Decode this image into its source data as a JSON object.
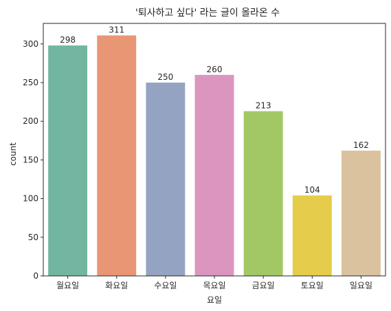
{
  "chart_data": {
    "type": "bar",
    "title": "'퇴사하고 싶다' 라는 글이 올라온 수",
    "xlabel": "요일",
    "ylabel": "count",
    "categories": [
      "월요일",
      "화요일",
      "수요일",
      "목요일",
      "금요일",
      "토요일",
      "일요일"
    ],
    "values": [
      298,
      311,
      250,
      260,
      213,
      104,
      162
    ],
    "data_labels": [
      "298",
      "311",
      "250",
      "260",
      "213",
      "104",
      "162"
    ],
    "colors": [
      "#72b6a1",
      "#e99675",
      "#95a3c3",
      "#db96c0",
      "#a2c865",
      "#e5cc4a",
      "#dbc29e"
    ],
    "ylim": [
      0,
      326.55
    ],
    "yticks": [
      0,
      50,
      100,
      150,
      200,
      250,
      300
    ],
    "ytick_labels": [
      "0",
      "50",
      "100",
      "150",
      "200",
      "250",
      "300"
    ],
    "grid": false,
    "legend": "none"
  }
}
